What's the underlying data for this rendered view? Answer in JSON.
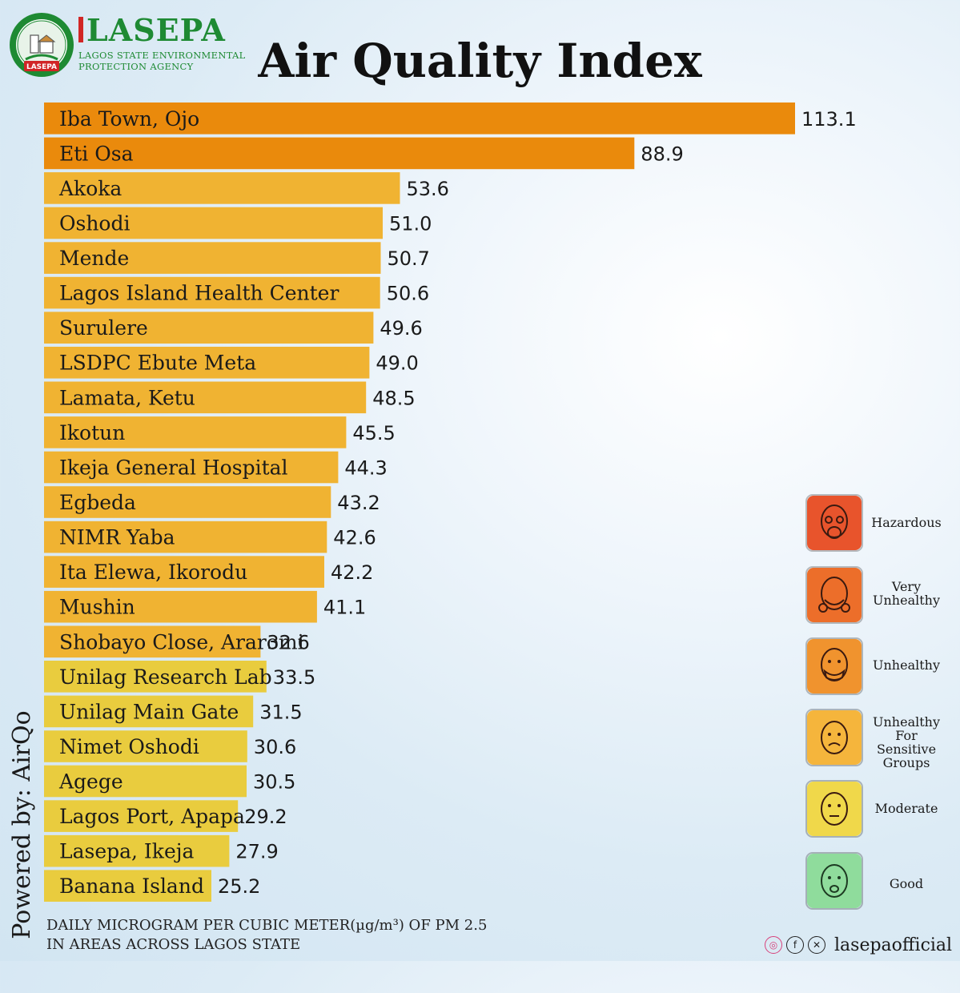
{
  "brand": {
    "name": "LASEPA",
    "subtitle_line1": "LAGOS STATE ENVIRONMENTAL",
    "subtitle_line2": "PROTECTION AGENCY",
    "seal_text": "LASEPA"
  },
  "title": "Air Quality Index",
  "powered_by": "Powered by: AirQo",
  "footnote_line1": "DAILY MICROGRAM PER CUBIC METER(µg/m³) OF PM 2.5",
  "footnote_line2": "IN AREAS ACROSS LAGOS STATE",
  "social_handle": "lasepaofficial",
  "colors": {
    "unhealthy": "#ea8a0c",
    "sensitive": "#f0b332",
    "moderate": "#e9cc3e",
    "brand_green": "#1e8a33"
  },
  "legend": [
    {
      "label": "Hazardous",
      "color": "#e8542c",
      "icon": "gas-mask-face-icon"
    },
    {
      "label": "Very Unhealthy",
      "color": "#ec6e2a",
      "icon": "respirator-face-icon"
    },
    {
      "label": "Unhealthy",
      "color": "#f0932e",
      "icon": "masked-face-icon"
    },
    {
      "label": "Unhealthy For Sensitive Groups",
      "color": "#f5b53c",
      "icon": "worried-face-icon"
    },
    {
      "label": "Moderate",
      "color": "#f0d84a",
      "icon": "neutral-face-icon"
    },
    {
      "label": "Good",
      "color": "#8fdc9c",
      "icon": "happy-face-icon"
    }
  ],
  "chart_data": {
    "type": "bar",
    "orientation": "horizontal",
    "title": "Air Quality Index",
    "categories": [
      "Iba Town, Ojo",
      "Eti Osa",
      "Akoka",
      "Oshodi",
      "Mende",
      "Lagos Island Health Center",
      "Surulere",
      "LSDPC  Ebute Meta",
      "Lamata, Ketu",
      "Ikotun",
      "Ikeja General Hospital",
      "Egbeda",
      "NIMR Yaba",
      "Ita Elewa, Ikorodu",
      "Mushin",
      "Shobayo Close, Araromi",
      "Unilag Research Lab",
      "Unilag Main Gate",
      "Nimet Oshodi",
      "Agege",
      "Lagos Port, Apapa",
      "Lasepa, Ikeja",
      "Banana Island"
    ],
    "values": [
      113.1,
      88.9,
      53.6,
      51.0,
      50.7,
      50.6,
      49.6,
      49.0,
      48.5,
      45.5,
      44.3,
      43.2,
      42.6,
      42.2,
      41.1,
      32.6,
      33.5,
      31.5,
      30.6,
      30.5,
      29.2,
      27.9,
      25.2
    ],
    "value_labels": [
      "113.1",
      "88.9",
      "53.6",
      "51.0",
      "50.7",
      "50.6",
      "49.6",
      "49.0",
      "48.5",
      "45.5",
      "44.3",
      "43.2",
      "42.6",
      "42.2",
      "41.1",
      "32.6",
      "33.5",
      "31.5",
      "30.6",
      "30.5",
      "29.2",
      "27.9",
      "25.2"
    ],
    "category_levels": [
      "Unhealthy",
      "Unhealthy",
      "Unhealthy For Sensitive Groups",
      "Unhealthy For Sensitive Groups",
      "Unhealthy For Sensitive Groups",
      "Unhealthy For Sensitive Groups",
      "Unhealthy For Sensitive Groups",
      "Unhealthy For Sensitive Groups",
      "Unhealthy For Sensitive Groups",
      "Unhealthy For Sensitive Groups",
      "Unhealthy For Sensitive Groups",
      "Unhealthy For Sensitive Groups",
      "Unhealthy For Sensitive Groups",
      "Unhealthy For Sensitive Groups",
      "Unhealthy For Sensitive Groups",
      "Unhealthy For Sensitive Groups",
      "Moderate",
      "Moderate",
      "Moderate",
      "Moderate",
      "Moderate",
      "Moderate",
      "Moderate"
    ],
    "unit": "µg/m³",
    "xlabel": "",
    "ylabel": "",
    "grid": false,
    "legend_position": "right"
  }
}
